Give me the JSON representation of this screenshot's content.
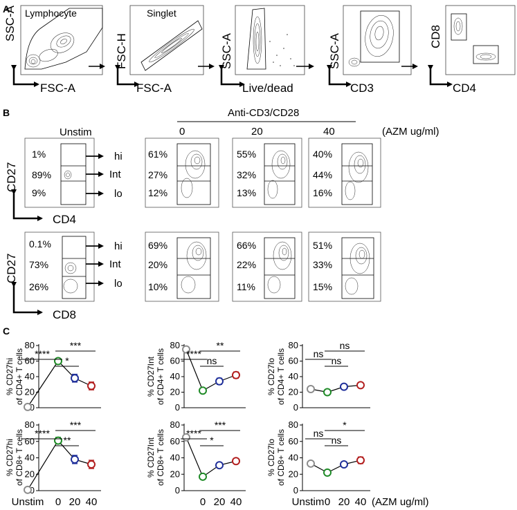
{
  "panel_labels": [
    "A",
    "B",
    "C"
  ],
  "gating": [
    {
      "y_label": "SSC-A",
      "x_label": "FSC-A",
      "gate_label": "Lymphocyte"
    },
    {
      "y_label": "FSC-H",
      "x_label": "FSC-A",
      "gate_label": "Singlet"
    },
    {
      "y_label": "SSC-A",
      "x_label": "Live/dead",
      "gate_label": ""
    },
    {
      "y_label": "SSC-A",
      "x_label": "CD3",
      "gate_label": ""
    },
    {
      "y_label": "CD8",
      "x_label": "CD4",
      "gate_label": ""
    }
  ],
  "panel_b": {
    "stim_label": "Anti-CD3/CD28",
    "unstim_label": "Unstim",
    "doses": [
      "0",
      "20",
      "40"
    ],
    "dose_unit": "(AZM ug/ml)",
    "gate_names": [
      "hi",
      "Int",
      "lo"
    ],
    "rows": [
      {
        "y_label": "CD27",
        "x_label": "CD4",
        "plots": [
          [
            "1%",
            "89%",
            "9%"
          ],
          [
            "61%",
            "27%",
            "12%"
          ],
          [
            "55%",
            "32%",
            "13%"
          ],
          [
            "40%",
            "44%",
            "16%"
          ]
        ]
      },
      {
        "y_label": "CD27",
        "x_label": "CD8",
        "plots": [
          [
            "0.1%",
            "73%",
            "26%"
          ],
          [
            "69%",
            "20%",
            "10%"
          ],
          [
            "66%",
            "22%",
            "11%"
          ],
          [
            "51%",
            "33%",
            "15%"
          ]
        ]
      }
    ]
  },
  "chart_data": [
    {
      "type": "line",
      "ylabel": "% CD27hi of CD4+ T cells",
      "categories": [
        "Unstim",
        "0",
        "20",
        "40"
      ],
      "values": [
        1,
        60,
        38,
        28
      ],
      "errors": [
        0,
        3,
        5,
        5
      ],
      "ylim": [
        0,
        80
      ],
      "yticks": [
        "0",
        "20",
        "40",
        "60",
        "80"
      ],
      "sig": [
        {
          "a": 0,
          "b": 1,
          "label": "****"
        },
        {
          "a": 1,
          "b": 2,
          "label": "*"
        },
        {
          "a": 1,
          "b": 3,
          "label": "***"
        }
      ]
    },
    {
      "type": "line",
      "ylabel": "% CD27Int of CD4+ T cells",
      "categories": [
        "Unstim",
        "0",
        "20",
        "40"
      ],
      "values": [
        75,
        22,
        34,
        42
      ],
      "errors": [
        0,
        2,
        4,
        4
      ],
      "ylim": [
        0,
        80
      ],
      "yticks": [
        "0",
        "20",
        "40",
        "60",
        "80"
      ],
      "sig": [
        {
          "a": 0,
          "b": 1,
          "label": "****"
        },
        {
          "a": 1,
          "b": 2,
          "label": "ns"
        },
        {
          "a": 1,
          "b": 3,
          "label": "**"
        }
      ]
    },
    {
      "type": "line",
      "ylabel": "% CD27lo of CD4+ T cells",
      "categories": [
        "Unstim",
        "0",
        "20",
        "40"
      ],
      "values": [
        24,
        20,
        27,
        29
      ],
      "errors": [
        0,
        2,
        2,
        2
      ],
      "ylim": [
        0,
        80
      ],
      "yticks": [
        "0",
        "20",
        "40",
        "60",
        "80"
      ],
      "sig": [
        {
          "a": 0,
          "b": 1,
          "label": "ns"
        },
        {
          "a": 1,
          "b": 2,
          "label": "ns"
        },
        {
          "a": 1,
          "b": 3,
          "label": "ns"
        }
      ]
    },
    {
      "type": "line",
      "ylabel": "% CD27hi of CD8+ T cells",
      "categories": [
        "Unstim",
        "0",
        "20",
        "40"
      ],
      "values": [
        1,
        61,
        38,
        32
      ],
      "errors": [
        0,
        4,
        5,
        5
      ],
      "ylim": [
        0,
        80
      ],
      "yticks": [
        "0",
        "20",
        "40",
        "60",
        "80"
      ],
      "sig": [
        {
          "a": 0,
          "b": 1,
          "label": "****"
        },
        {
          "a": 1,
          "b": 2,
          "label": "**"
        },
        {
          "a": 1,
          "b": 3,
          "label": "***"
        }
      ]
    },
    {
      "type": "line",
      "ylabel": "% CD27Int of CD8+ T cells",
      "categories": [
        "Unstim",
        "0",
        "20",
        "40"
      ],
      "values": [
        65,
        17,
        31,
        36
      ],
      "errors": [
        0,
        2,
        2,
        2
      ],
      "ylim": [
        0,
        80
      ],
      "yticks": [
        "0",
        "20",
        "40",
        "60",
        "80"
      ],
      "sig": [
        {
          "a": 0,
          "b": 1,
          "label": "****"
        },
        {
          "a": 1,
          "b": 2,
          "label": "*"
        },
        {
          "a": 1,
          "b": 3,
          "label": "***"
        }
      ]
    },
    {
      "type": "line",
      "ylabel": "% CD27lo of CD8+ T cells",
      "categories": [
        "Unstim",
        "0",
        "20",
        "40"
      ],
      "values": [
        33,
        22,
        32,
        37
      ],
      "errors": [
        0,
        2,
        3,
        4
      ],
      "ylim": [
        0,
        80
      ],
      "yticks": [
        "0",
        "20",
        "40",
        "60",
        "80"
      ],
      "sig": [
        {
          "a": 0,
          "b": 1,
          "label": "ns"
        },
        {
          "a": 1,
          "b": 2,
          "label": "ns"
        },
        {
          "a": 1,
          "b": 3,
          "label": "*"
        }
      ]
    }
  ],
  "panel_c": {
    "x_category_labels": [
      "Unstim",
      "0",
      "20",
      "40"
    ],
    "x_unit": "(AZM ug/ml)",
    "colors": [
      "#8c8c8c",
      "#1e8a26",
      "#1f2f9a",
      "#b21e1e"
    ]
  }
}
